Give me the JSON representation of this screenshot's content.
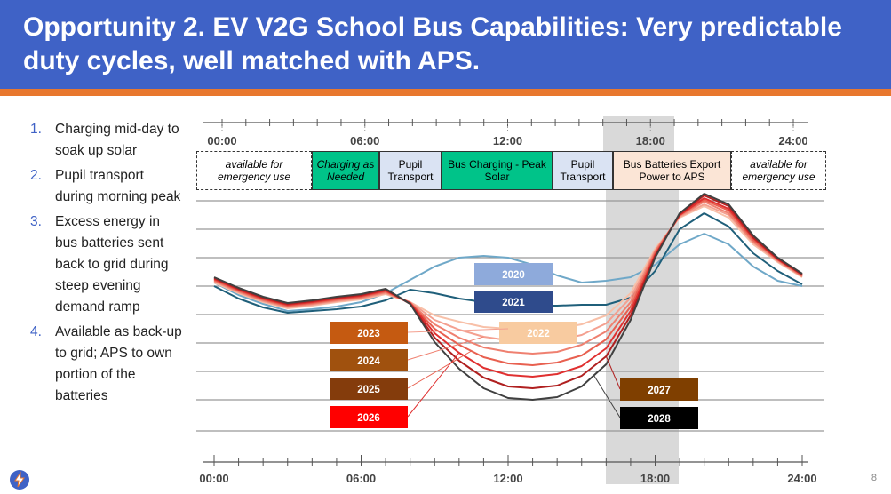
{
  "header": {
    "title": "Opportunity 2. EV V2G School Bus Capabilities: Very predictable duty cycles, well matched with APS."
  },
  "list": [
    {
      "number": "1.",
      "text": "Charging mid-day to soak up solar"
    },
    {
      "number": "2.",
      "text": "Pupil transport during morning peak"
    },
    {
      "number": "3.",
      "text": "Excess energy in bus batteries sent back to grid during steep evening demand ramp"
    },
    {
      "number": "4.",
      "text": "Available as back-up to grid; APS to own portion of the batteries"
    }
  ],
  "schedule": [
    {
      "label": "available for emergency use",
      "color": "#ffffff"
    },
    {
      "label": "Charging as Needed",
      "color": "#00c389"
    },
    {
      "label": "Pupil Transport",
      "color": "#dae3f3"
    },
    {
      "label": "Bus Charging - Peak Solar",
      "color": "#00c389"
    },
    {
      "label": "Pupil Transport",
      "color": "#dae3f3"
    },
    {
      "label": "Bus Batteries Export Power to APS",
      "color": "#fbe5d6"
    },
    {
      "label": "available for emergency use",
      "color": "#ffffff"
    }
  ],
  "page_number": "8",
  "chart_data": {
    "type": "line",
    "x": [
      0,
      1,
      2,
      3,
      4,
      5,
      6,
      7,
      8,
      9,
      10,
      11,
      12,
      13,
      14,
      15,
      16,
      17,
      18,
      19,
      20,
      21,
      22,
      23,
      24
    ],
    "xlim": [
      0,
      24
    ],
    "xticks": [
      {
        "value": 0,
        "label": "00:00"
      },
      {
        "value": 6,
        "label": "06:00"
      },
      {
        "value": 12,
        "label": "12:00"
      },
      {
        "value": 18,
        "label": "18:00"
      },
      {
        "value": 24,
        "label": "24:00"
      }
    ],
    "ylim": [
      0,
      305
    ],
    "series": [
      {
        "name": "2020",
        "color": "#6fa8c8",
        "label_color": "#8eaadb",
        "values": [
          202,
          188,
          178,
          170,
          172,
          175,
          180,
          190,
          205,
          220,
          230,
          232,
          230,
          222,
          210,
          202,
          204,
          208,
          222,
          245,
          257,
          245,
          220,
          204,
          198
        ]
      },
      {
        "name": "2021",
        "color": "#1f5f7a",
        "label_color": "#2f4b8c",
        "values": [
          198,
          184,
          174,
          168,
          170,
          172,
          175,
          182,
          194,
          190,
          184,
          180,
          177,
          176,
          176,
          177,
          177,
          185,
          215,
          262,
          280,
          265,
          235,
          215,
          200
        ]
      },
      {
        "name": "2022",
        "color": "#f8c0a8",
        "label_color": "#f8cba0",
        "values": [
          202,
          190,
          180,
          173,
          176,
          180,
          183,
          189,
          180,
          165,
          158,
          152,
          150,
          148,
          150,
          155,
          165,
          190,
          240,
          275,
          288,
          275,
          245,
          225,
          208
        ]
      },
      {
        "name": "2023",
        "color": "#f4a090",
        "label_color": "#c55a11",
        "values": [
          203,
          191,
          181,
          174,
          177,
          181,
          184,
          190,
          180,
          160,
          149,
          141,
          137,
          135,
          137,
          143,
          156,
          185,
          238,
          276,
          290,
          278,
          247,
          226,
          209
        ]
      },
      {
        "name": "2024",
        "color": "#ef8070",
        "label_color": "#a0510e",
        "values": [
          204,
          192,
          182,
          175,
          178,
          182,
          185,
          191,
          179,
          155,
          140,
          129,
          124,
          122,
          124,
          132,
          147,
          180,
          237,
          277,
          293,
          280,
          248,
          227,
          209
        ]
      },
      {
        "name": "2025",
        "color": "#e86050",
        "label_color": "#843c0c",
        "values": [
          205,
          193,
          183,
          176,
          179,
          183,
          186,
          192,
          179,
          150,
          132,
          118,
          111,
          109,
          112,
          120,
          138,
          175,
          235,
          278,
          295,
          283,
          250,
          228,
          210
        ]
      },
      {
        "name": "2026",
        "color": "#e03030",
        "label_color": "#ff0000",
        "values": [
          206,
          194,
          184,
          177,
          180,
          184,
          187,
          193,
          179,
          145,
          123,
          106,
          98,
          96,
          99,
          108,
          128,
          170,
          233,
          278,
          297,
          285,
          252,
          228,
          211
        ]
      },
      {
        "name": "2027",
        "color": "#b02020",
        "label_color": "#7f3f00",
        "values": [
          207,
          195,
          185,
          178,
          181,
          185,
          188,
          194,
          178,
          140,
          114,
          95,
          85,
          83,
          86,
          97,
          119,
          165,
          232,
          279,
          300,
          288,
          253,
          229,
          211
        ]
      },
      {
        "name": "2028",
        "color": "#404040",
        "label_color": "#000000",
        "values": [
          208,
          196,
          186,
          179,
          182,
          186,
          189,
          195,
          178,
          135,
          105,
          83,
          72,
          70,
          73,
          85,
          110,
          160,
          230,
          280,
          302,
          290,
          255,
          230,
          212
        ]
      }
    ]
  }
}
